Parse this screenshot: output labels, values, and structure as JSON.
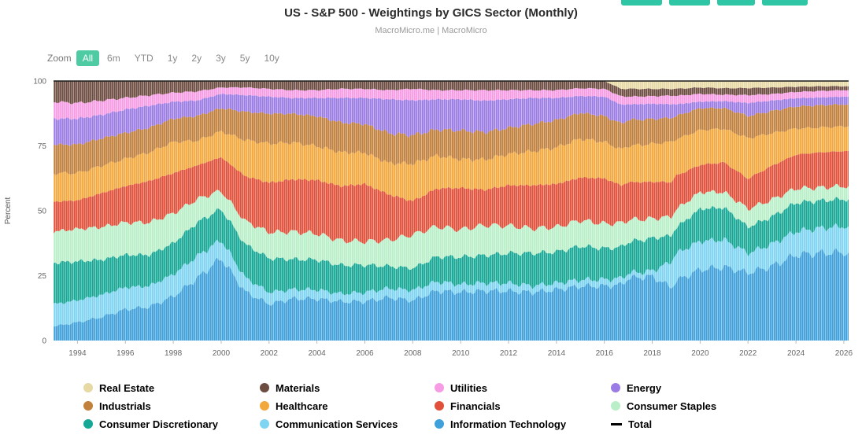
{
  "colors": {
    "accent_teal": "#2fc6a5",
    "zoom_active_bg": "#4fcba4",
    "total_line": "#000000"
  },
  "toolbar": {
    "zoom_label": "Zoom",
    "buttons": [
      {
        "label": "All",
        "active": true
      },
      {
        "label": "6m",
        "active": false
      },
      {
        "label": "YTD",
        "active": false
      },
      {
        "label": "1y",
        "active": false
      },
      {
        "label": "2y",
        "active": false
      },
      {
        "label": "3y",
        "active": false
      },
      {
        "label": "5y",
        "active": false
      },
      {
        "label": "10y",
        "active": false
      }
    ]
  },
  "chart_data": {
    "type": "area",
    "stacked": true,
    "title": "US - S&P 500 - Weightings by GICS Sector (Monthly)",
    "subtitle": "MacroMicro.me | MacroMicro",
    "ylabel": "Percent",
    "ylim": [
      0,
      100
    ],
    "yticks": [
      0,
      25,
      50,
      75,
      100
    ],
    "xticks": [
      1994,
      1996,
      1998,
      2000,
      2002,
      2004,
      2006,
      2008,
      2010,
      2012,
      2014,
      2016,
      2018,
      2020,
      2022,
      2024,
      2026
    ],
    "grid": false,
    "legend_position": "bottom",
    "total_line": {
      "label": "Total",
      "value": 100
    },
    "x": [
      1993,
      1994,
      1995,
      1996,
      1997,
      1998,
      1999,
      2000,
      2001,
      2002,
      2003,
      2004,
      2005,
      2006,
      2007,
      2008,
      2009,
      2010,
      2011,
      2012,
      2013,
      2014,
      2015,
      2016,
      2016.7,
      2017,
      2018,
      2018.8,
      2019,
      2020,
      2021,
      2022,
      2023,
      2024,
      2025,
      2026,
      2026.2
    ],
    "series": [
      {
        "name": "Information Technology",
        "color": "#3fa0da",
        "values": [
          5.5,
          7,
          9,
          12,
          13,
          17,
          24,
          32,
          19,
          14,
          16,
          16,
          15,
          15,
          16.5,
          15.5,
          19,
          18.5,
          19,
          19,
          18.5,
          19.5,
          21,
          21,
          21.5,
          24,
          24.5,
          20.5,
          23,
          27.5,
          28.5,
          26,
          28.5,
          33,
          33.5,
          34,
          34
        ]
      },
      {
        "name": "Communication Services",
        "color": "#7fd4f2",
        "values": [
          8.5,
          8.5,
          8.5,
          8.5,
          8,
          8.5,
          8.5,
          7,
          5.5,
          4.5,
          3.5,
          3.5,
          3,
          3.5,
          3.5,
          4,
          3.5,
          3,
          3,
          3,
          2.5,
          2.5,
          2.5,
          2.5,
          2.5,
          2,
          2,
          10,
          10.5,
          11,
          10.5,
          7.5,
          8.5,
          9,
          9.5,
          10,
          10
        ]
      },
      {
        "name": "Consumer Discretionary",
        "color": "#16a795",
        "values": [
          16,
          15,
          13.5,
          12.5,
          12,
          12,
          13,
          12,
          13,
          13,
          11.5,
          11.5,
          11,
          10.5,
          8.5,
          8.5,
          9.5,
          10.5,
          10.5,
          11.5,
          12.5,
          12,
          13,
          12,
          12,
          12,
          12.5,
          10,
          10,
          12.5,
          12.5,
          10,
          10.5,
          11,
          10.5,
          10.5,
          10.5
        ]
      },
      {
        "name": "Consumer Staples",
        "color": "#b9efc8",
        "values": [
          12,
          12.5,
          12.5,
          12.5,
          12.5,
          11.5,
          9,
          7,
          9,
          10,
          10.5,
          10,
          9.5,
          9,
          10,
          13,
          11.5,
          10.5,
          11.5,
          10.5,
          9.5,
          9.5,
          10,
          9.5,
          9.3,
          8.5,
          7.5,
          7.3,
          7,
          6.5,
          6,
          7,
          6.5,
          5.5,
          5,
          5,
          5
        ]
      },
      {
        "name": "Financials",
        "color": "#e1503a",
        "values": [
          11.5,
          11,
          13,
          14,
          16,
          15.5,
          13,
          13,
          17.5,
          19,
          20,
          20.5,
          21,
          22,
          17.5,
          13,
          14.5,
          16,
          13.5,
          15.5,
          16.5,
          16.5,
          16.5,
          17.5,
          14.5,
          14.5,
          14,
          13.3,
          13,
          10.5,
          11.5,
          11.5,
          13,
          13,
          13.5,
          13.5,
          13.5
        ]
      },
      {
        "name": "Healthcare",
        "color": "#f3a83d",
        "values": [
          11,
          10.5,
          10.5,
          10.5,
          11,
          12,
          9.5,
          10,
          14,
          15,
          14,
          13,
          13,
          12,
          12,
          14.5,
          12.5,
          11,
          11.5,
          12,
          13,
          14,
          15,
          14,
          13.8,
          14,
          14.5,
          15.5,
          14,
          13.5,
          13,
          15.5,
          12.5,
          10,
          9.5,
          9.5,
          9.5
        ]
      },
      {
        "name": "Industrials",
        "color": "#c1803c",
        "values": [
          11,
          11,
          10.5,
          10,
          9.5,
          9,
          9.5,
          9,
          11,
          11.5,
          11,
          11.5,
          11.5,
          11,
          11.5,
          11,
          10,
          11,
          10.5,
          10,
          10.5,
          10.5,
          10,
          10,
          10,
          10,
          9.5,
          9.2,
          9,
          8.5,
          8,
          8.5,
          8.5,
          8.5,
          8.5,
          8.5,
          8.5
        ]
      },
      {
        "name": "Energy",
        "color": "#9b7ce4",
        "values": [
          10,
          10,
          9,
          9,
          8.5,
          6.5,
          6,
          5.5,
          6.5,
          6.5,
          6,
          7,
          9.5,
          10,
          13,
          13.5,
          11.5,
          12,
          12,
          11,
          10,
          8.5,
          6.5,
          7.5,
          7.3,
          6,
          5.8,
          5.3,
          4.5,
          2.5,
          2.7,
          5,
          4,
          3.2,
          3,
          3,
          3
        ]
      },
      {
        "name": "Utilities",
        "color": "#f79ce4",
        "values": [
          6.5,
          6,
          5.5,
          4.5,
          4,
          3.5,
          3.5,
          2.5,
          3,
          3,
          3,
          3,
          3.5,
          3.5,
          3.5,
          4.5,
          3.5,
          3.5,
          4,
          3.5,
          3,
          3,
          3,
          3,
          3.2,
          3,
          2.9,
          3.3,
          3.3,
          3,
          2.5,
          3,
          2.5,
          2.4,
          2.5,
          2.5,
          2.5
        ]
      },
      {
        "name": "Materials",
        "color": "#6d4c41",
        "values": [
          8,
          8.5,
          7.5,
          6.5,
          5.5,
          4.5,
          4,
          2.5,
          2.5,
          3,
          3.5,
          3.5,
          3,
          3,
          3.5,
          3,
          3.5,
          3.5,
          3.5,
          3.5,
          3.5,
          3.5,
          2.8,
          3,
          2.9,
          3,
          2.8,
          2.6,
          2.7,
          2.5,
          2.5,
          2.7,
          2.5,
          2,
          1.8,
          1.5,
          1.5
        ]
      },
      {
        "name": "Real Estate",
        "color": "#e7d9a4",
        "values": [
          0,
          0,
          0,
          0,
          0,
          0,
          0,
          0,
          0,
          0,
          0,
          0,
          0,
          0,
          0,
          0,
          0,
          0,
          0,
          0,
          0,
          0,
          0,
          0,
          3,
          3,
          3,
          3,
          3,
          2.5,
          2.8,
          2.7,
          2.5,
          2.2,
          2,
          2,
          2
        ]
      }
    ]
  },
  "legend": {
    "items": [
      {
        "label": "Real Estate",
        "color": "#e7d9a4",
        "marker": "dot"
      },
      {
        "label": "Materials",
        "color": "#6d4c41",
        "marker": "dot"
      },
      {
        "label": "Utilities",
        "color": "#f79ce4",
        "marker": "dot"
      },
      {
        "label": "Energy",
        "color": "#9b7ce4",
        "marker": "dot"
      },
      {
        "label": "Industrials",
        "color": "#c1803c",
        "marker": "dot"
      },
      {
        "label": "Healthcare",
        "color": "#f3a83d",
        "marker": "dot"
      },
      {
        "label": "Financials",
        "color": "#e1503a",
        "marker": "dot"
      },
      {
        "label": "Consumer Staples",
        "color": "#b9efc8",
        "marker": "dot"
      },
      {
        "label": "Consumer Discretionary",
        "color": "#16a795",
        "marker": "dot"
      },
      {
        "label": "Communication Services",
        "color": "#7fd4f2",
        "marker": "dot"
      },
      {
        "label": "Information Technology",
        "color": "#3fa0da",
        "marker": "dot"
      },
      {
        "label": "Total",
        "color": "#000000",
        "marker": "line"
      }
    ]
  }
}
